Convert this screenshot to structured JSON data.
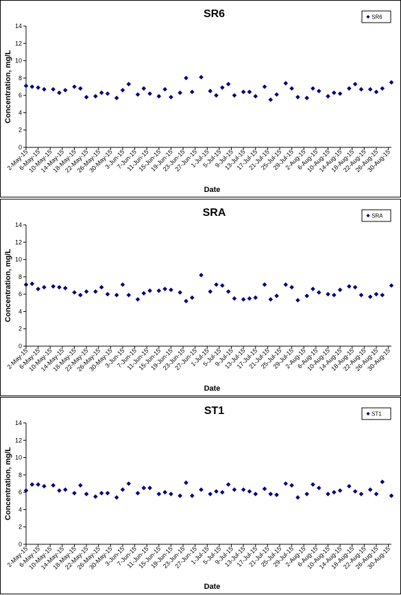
{
  "chart_data": [
    {
      "type": "scatter",
      "title": "SR6",
      "xlabel": "Date",
      "ylabel": "Concentration, mg/L",
      "ylim": [
        0,
        14
      ],
      "yticks": [
        0,
        2,
        4,
        6,
        8,
        10,
        12,
        14
      ],
      "grid": false,
      "legend": "top-right",
      "color": "#000080",
      "x_ticks": [
        "2-May-15",
        "6-May-15",
        "10-May-15",
        "14-May-15",
        "18-May-15",
        "22-May-15",
        "26-May-15",
        "30-May-15",
        "3-Jun-15",
        "7-Jun-15",
        "11-Jun-15",
        "15-Jun-15",
        "19-Jun-15",
        "23-Jun-15",
        "27-Jun-15",
        "1-Jul-15",
        "5-Jul-15",
        "9-Jul-15",
        "13-Jul-15",
        "17-Jul-15",
        "21-Jul-15",
        "25-Jul-15",
        "29-Jul-15",
        "2-Aug-15",
        "6-Aug-15",
        "10-Aug-15",
        "14-Aug-15",
        "18-Aug-15",
        "22-Aug-15",
        "26-Aug-15",
        "30-Aug-15"
      ],
      "xlim": [
        "2015-05-02",
        "2015-08-31"
      ],
      "series": [
        {
          "name": "SR6",
          "points": [
            [
              "2015-05-02",
              7.1
            ],
            [
              "2015-05-04",
              7.0
            ],
            [
              "2015-05-06",
              6.9
            ],
            [
              "2015-05-08",
              6.7
            ],
            [
              "2015-05-11",
              6.7
            ],
            [
              "2015-05-13",
              6.3
            ],
            [
              "2015-05-15",
              6.6
            ],
            [
              "2015-05-18",
              7.0
            ],
            [
              "2015-05-20",
              6.8
            ],
            [
              "2015-05-22",
              5.8
            ],
            [
              "2015-05-25",
              5.9
            ],
            [
              "2015-05-27",
              6.3
            ],
            [
              "2015-05-29",
              6.2
            ],
            [
              "2015-06-01",
              5.7
            ],
            [
              "2015-06-03",
              6.6
            ],
            [
              "2015-06-05",
              7.3
            ],
            [
              "2015-06-08",
              6.1
            ],
            [
              "2015-06-10",
              6.8
            ],
            [
              "2015-06-12",
              6.2
            ],
            [
              "2015-06-15",
              5.9
            ],
            [
              "2015-06-17",
              6.7
            ],
            [
              "2015-06-19",
              5.8
            ],
            [
              "2015-06-22",
              6.3
            ],
            [
              "2015-06-24",
              8.0
            ],
            [
              "2015-06-26",
              6.4
            ],
            [
              "2015-06-29",
              8.1
            ],
            [
              "2015-07-02",
              6.5
            ],
            [
              "2015-07-04",
              6.0
            ],
            [
              "2015-07-06",
              6.9
            ],
            [
              "2015-07-08",
              7.3
            ],
            [
              "2015-07-10",
              6.0
            ],
            [
              "2015-07-13",
              6.4
            ],
            [
              "2015-07-15",
              6.4
            ],
            [
              "2015-07-17",
              5.9
            ],
            [
              "2015-07-20",
              7.0
            ],
            [
              "2015-07-22",
              5.5
            ],
            [
              "2015-07-24",
              6.1
            ],
            [
              "2015-07-27",
              7.4
            ],
            [
              "2015-07-29",
              6.8
            ],
            [
              "2015-07-31",
              5.8
            ],
            [
              "2015-08-03",
              5.7
            ],
            [
              "2015-08-05",
              6.8
            ],
            [
              "2015-08-07",
              6.5
            ],
            [
              "2015-08-10",
              5.9
            ],
            [
              "2015-08-12",
              6.3
            ],
            [
              "2015-08-14",
              6.2
            ],
            [
              "2015-08-17",
              6.8
            ],
            [
              "2015-08-19",
              7.3
            ],
            [
              "2015-08-21",
              6.7
            ],
            [
              "2015-08-24",
              6.7
            ],
            [
              "2015-08-26",
              6.4
            ],
            [
              "2015-08-28",
              6.8
            ],
            [
              "2015-08-31",
              7.5
            ]
          ]
        }
      ]
    },
    {
      "type": "scatter",
      "title": "SRA",
      "xlabel": "Date",
      "ylabel": "Concentration, mg/L",
      "ylim": [
        0,
        14
      ],
      "yticks": [
        0,
        2,
        4,
        6,
        8,
        10,
        12,
        14
      ],
      "grid": false,
      "legend": "top-right",
      "color": "#000080",
      "x_ticks": [
        "2-May-15",
        "6-May-15",
        "10-May-15",
        "14-May-15",
        "18-May-15",
        "22-May-15",
        "26-May-15",
        "30-May-15",
        "3-Jun-15",
        "7-Jun-15",
        "11-Jun-15",
        "15-Jun-15",
        "19-Jun-15",
        "23-Jun-15",
        "27-Jun-15",
        "1-Jul-15",
        "5-Jul-15",
        "9-Jul-15",
        "13-Jul-15",
        "17-Jul-15",
        "21-Jul-15",
        "25-Jul-15",
        "29-Jul-15",
        "2-Aug-15",
        "6-Aug-15",
        "10-Aug-15",
        "14-Aug-15",
        "18-Aug-15",
        "22-Aug-15",
        "26-Aug-15",
        "30-Aug-15"
      ],
      "xlim": [
        "2015-05-02",
        "2015-08-31"
      ],
      "series": [
        {
          "name": "SRA",
          "points": [
            [
              "2015-05-02",
              7.1
            ],
            [
              "2015-05-04",
              7.2
            ],
            [
              "2015-05-06",
              6.6
            ],
            [
              "2015-05-08",
              6.8
            ],
            [
              "2015-05-11",
              6.9
            ],
            [
              "2015-05-13",
              6.8
            ],
            [
              "2015-05-15",
              6.7
            ],
            [
              "2015-05-18",
              6.2
            ],
            [
              "2015-05-20",
              5.9
            ],
            [
              "2015-05-22",
              6.3
            ],
            [
              "2015-05-25",
              6.3
            ],
            [
              "2015-05-27",
              6.8
            ],
            [
              "2015-05-29",
              6.0
            ],
            [
              "2015-06-01",
              5.9
            ],
            [
              "2015-06-03",
              7.1
            ],
            [
              "2015-06-05",
              5.9
            ],
            [
              "2015-06-08",
              5.4
            ],
            [
              "2015-06-10",
              6.1
            ],
            [
              "2015-06-12",
              6.4
            ],
            [
              "2015-06-15",
              6.4
            ],
            [
              "2015-06-17",
              6.6
            ],
            [
              "2015-06-19",
              6.5
            ],
            [
              "2015-06-22",
              6.2
            ],
            [
              "2015-06-24",
              5.2
            ],
            [
              "2015-06-26",
              5.6
            ],
            [
              "2015-06-29",
              8.2
            ],
            [
              "2015-07-02",
              6.3
            ],
            [
              "2015-07-04",
              7.1
            ],
            [
              "2015-07-06",
              7.0
            ],
            [
              "2015-07-08",
              6.3
            ],
            [
              "2015-07-10",
              5.5
            ],
            [
              "2015-07-13",
              5.4
            ],
            [
              "2015-07-15",
              5.5
            ],
            [
              "2015-07-17",
              5.6
            ],
            [
              "2015-07-20",
              7.1
            ],
            [
              "2015-07-22",
              5.4
            ],
            [
              "2015-07-24",
              5.8
            ],
            [
              "2015-07-27",
              7.1
            ],
            [
              "2015-07-29",
              6.8
            ],
            [
              "2015-07-31",
              5.3
            ],
            [
              "2015-08-03",
              5.8
            ],
            [
              "2015-08-05",
              6.6
            ],
            [
              "2015-08-07",
              6.2
            ],
            [
              "2015-08-10",
              6.0
            ],
            [
              "2015-08-12",
              5.9
            ],
            [
              "2015-08-14",
              6.5
            ],
            [
              "2015-08-17",
              6.9
            ],
            [
              "2015-08-19",
              6.8
            ],
            [
              "2015-08-21",
              5.9
            ],
            [
              "2015-08-24",
              5.7
            ],
            [
              "2015-08-26",
              6.0
            ],
            [
              "2015-08-28",
              5.9
            ],
            [
              "2015-08-31",
              7.0
            ]
          ]
        }
      ]
    },
    {
      "type": "scatter",
      "title": "ST1",
      "xlabel": "Date",
      "ylabel": "Concentration, mg/L",
      "ylim": [
        0,
        14
      ],
      "yticks": [
        0,
        2,
        4,
        6,
        8,
        10,
        12,
        14
      ],
      "grid": false,
      "legend": "top-right",
      "color": "#000080",
      "x_ticks": [
        "2-May-15",
        "6-May-15",
        "10-May-15",
        "14-May-15",
        "18-May-15",
        "22-May-15",
        "26-May-15",
        "30-May-15",
        "3-Jun-15",
        "7-Jun-15",
        "11-Jun-15",
        "15-Jun-15",
        "19-Jun-15",
        "23-Jun-15",
        "27-Jun-15",
        "1-Jul-15",
        "5-Jul-15",
        "9-Jul-15",
        "13-Jul-15",
        "17-Jul-15",
        "21-Jul-15",
        "25-Jul-15",
        "29-Jul-15",
        "2-Aug-15",
        "6-Aug-15",
        "10-Aug-15",
        "14-Aug-15",
        "18-Aug-15",
        "22-Aug-15",
        "26-Aug-15",
        "30-Aug-15"
      ],
      "xlim": [
        "2015-05-02",
        "2015-08-31"
      ],
      "series": [
        {
          "name": "ST1",
          "points": [
            [
              "2015-05-02",
              6.2
            ],
            [
              "2015-05-04",
              6.9
            ],
            [
              "2015-05-06",
              6.9
            ],
            [
              "2015-05-08",
              6.7
            ],
            [
              "2015-05-11",
              6.8
            ],
            [
              "2015-05-13",
              6.2
            ],
            [
              "2015-05-15",
              6.3
            ],
            [
              "2015-05-18",
              5.9
            ],
            [
              "2015-05-20",
              6.8
            ],
            [
              "2015-05-22",
              5.8
            ],
            [
              "2015-05-25",
              5.5
            ],
            [
              "2015-05-27",
              5.9
            ],
            [
              "2015-05-29",
              5.9
            ],
            [
              "2015-06-01",
              5.4
            ],
            [
              "2015-06-03",
              6.3
            ],
            [
              "2015-06-05",
              7.0
            ],
            [
              "2015-06-08",
              5.9
            ],
            [
              "2015-06-10",
              6.5
            ],
            [
              "2015-06-12",
              6.5
            ],
            [
              "2015-06-15",
              5.8
            ],
            [
              "2015-06-17",
              6.0
            ],
            [
              "2015-06-19",
              5.8
            ],
            [
              "2015-06-22",
              5.6
            ],
            [
              "2015-06-24",
              7.1
            ],
            [
              "2015-06-26",
              5.6
            ],
            [
              "2015-06-29",
              6.3
            ],
            [
              "2015-07-02",
              5.8
            ],
            [
              "2015-07-04",
              6.1
            ],
            [
              "2015-07-06",
              6.0
            ],
            [
              "2015-07-08",
              6.9
            ],
            [
              "2015-07-10",
              6.3
            ],
            [
              "2015-07-13",
              6.3
            ],
            [
              "2015-07-15",
              6.1
            ],
            [
              "2015-07-17",
              5.8
            ],
            [
              "2015-07-20",
              6.4
            ],
            [
              "2015-07-22",
              5.8
            ],
            [
              "2015-07-24",
              5.7
            ],
            [
              "2015-07-27",
              7.0
            ],
            [
              "2015-07-29",
              6.8
            ],
            [
              "2015-07-31",
              5.4
            ],
            [
              "2015-08-03",
              5.8
            ],
            [
              "2015-08-05",
              6.9
            ],
            [
              "2015-08-07",
              6.5
            ],
            [
              "2015-08-10",
              5.8
            ],
            [
              "2015-08-12",
              6.0
            ],
            [
              "2015-08-14",
              6.2
            ],
            [
              "2015-08-17",
              6.7
            ],
            [
              "2015-08-19",
              6.1
            ],
            [
              "2015-08-21",
              5.8
            ],
            [
              "2015-08-24",
              6.3
            ],
            [
              "2015-08-26",
              5.8
            ],
            [
              "2015-08-28",
              7.2
            ],
            [
              "2015-08-31",
              5.6
            ]
          ]
        }
      ]
    }
  ]
}
